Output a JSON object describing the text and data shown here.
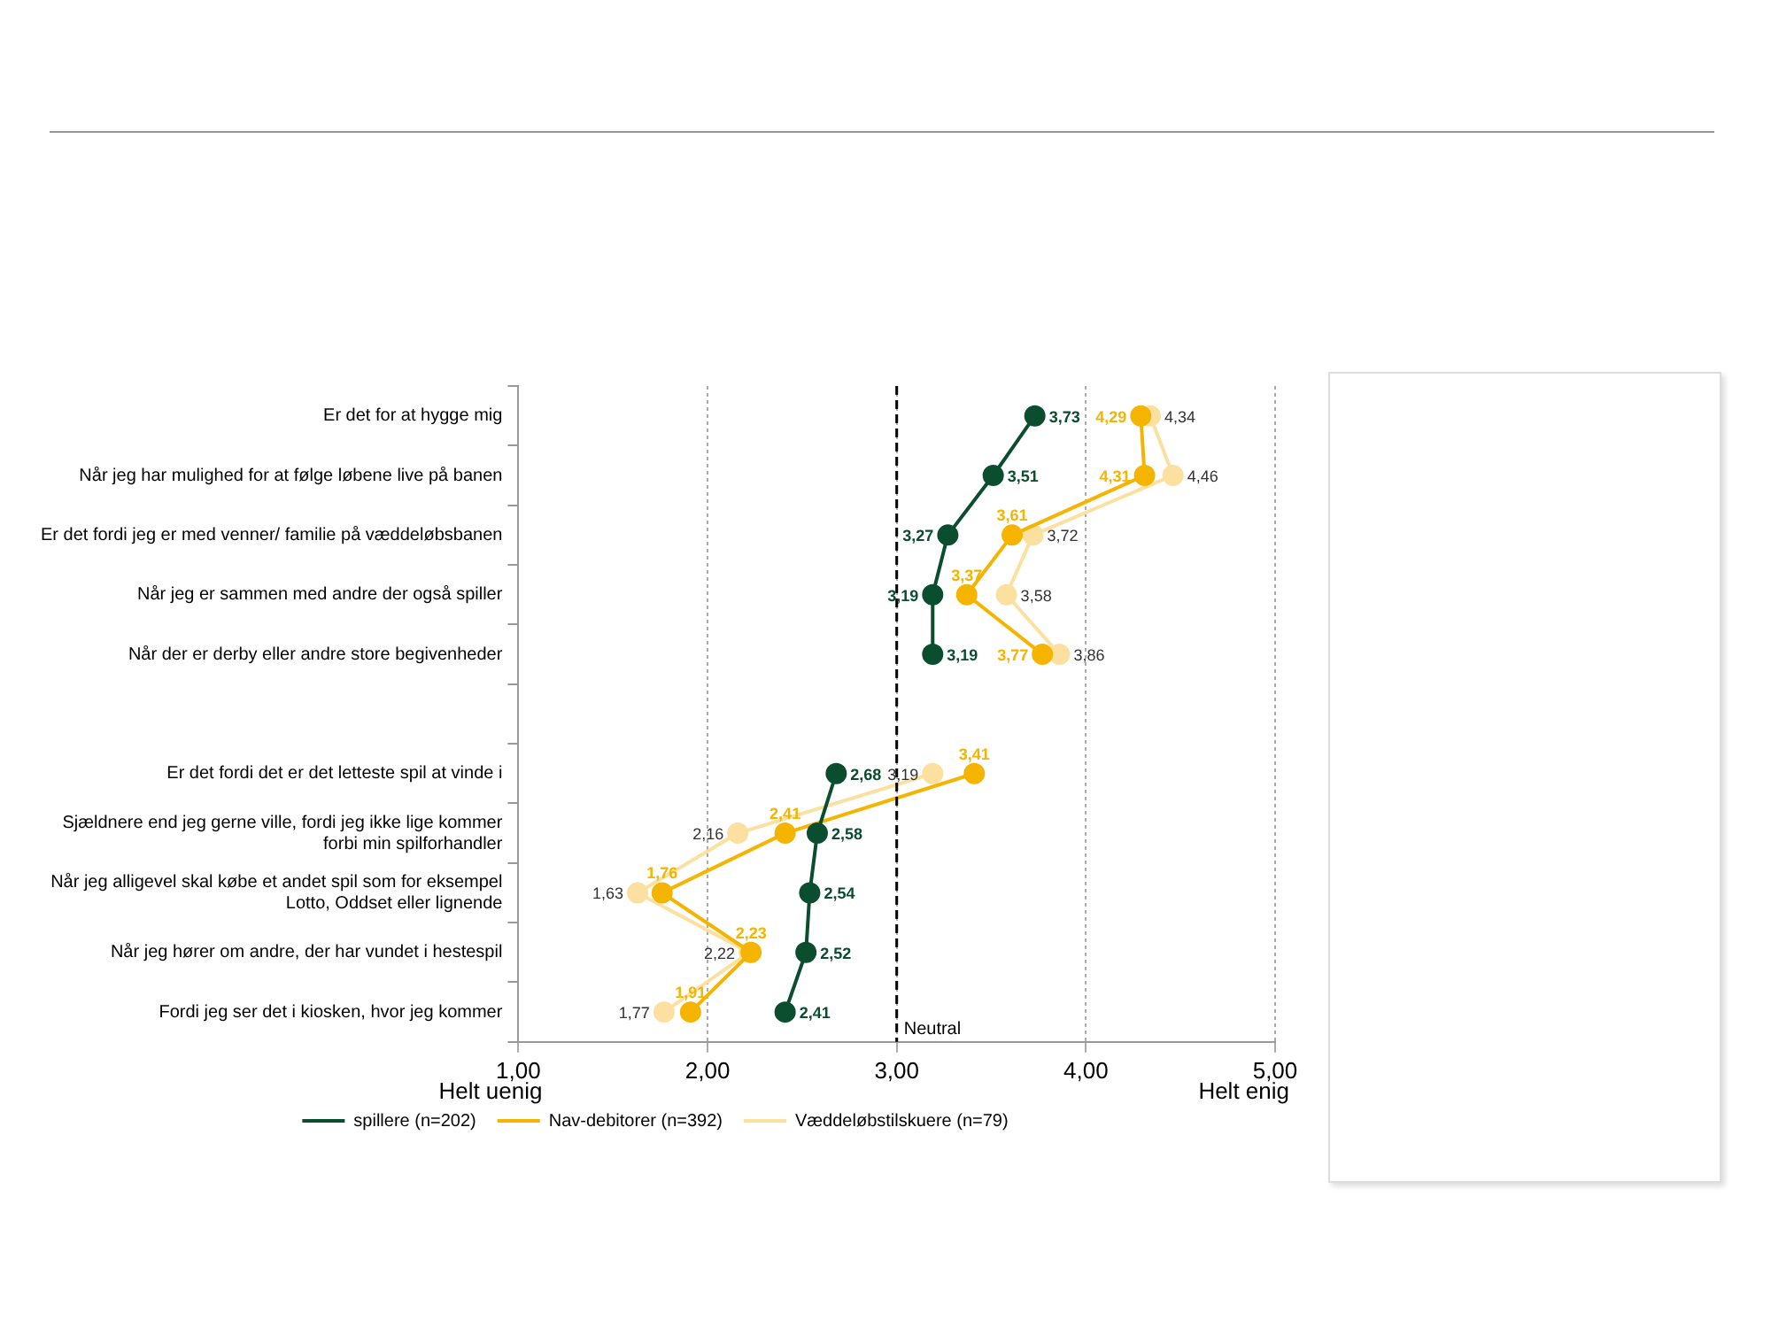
{
  "chart_data": {
    "type": "line",
    "orientation": "horizontal",
    "categories": [
      "Er det for at hygge mig",
      "Når jeg har mulighed for at følge løbene live på banen",
      "Er det fordi jeg er med venner/ familie på væddeløbsbanen",
      "Når jeg er sammen med andre der også spiller",
      "Når der er derby eller andre store begivenheder",
      null,
      "Er det fordi det er det letteste spil at vinde i",
      "Sjældnere end jeg gerne ville, fordi jeg ikke lige kommer forbi min spilforhandler",
      "Når jeg alligevel skal købe et andet spil som for eksempel Lotto, Oddset eller lignende",
      "Når jeg hører om andre, der har vundet i hestespil",
      "Fordi jeg ser det i kiosken, hvor jeg kommer"
    ],
    "series": [
      {
        "name": "spillere (n=202)",
        "color": "#0b4d2f",
        "values": [
          3.73,
          3.51,
          3.27,
          3.19,
          3.19,
          null,
          2.68,
          2.58,
          2.54,
          2.52,
          2.41
        ],
        "value_labels": [
          "3,73",
          "3,51",
          "3,27",
          "3,19",
          "3,19",
          null,
          "2,68",
          "2,58",
          "2,54",
          "2,52",
          "2,41"
        ]
      },
      {
        "name": "Nav-debitorer (n=392)",
        "color": "#f5b400",
        "values": [
          4.29,
          4.31,
          3.61,
          3.37,
          3.77,
          null,
          3.41,
          2.41,
          1.76,
          2.23,
          1.91
        ],
        "value_labels": [
          "4,29",
          "4,31",
          "3,61",
          "3,37",
          "3,77",
          null,
          "3,41",
          "2,41",
          "1,76",
          "2,23",
          "1,91"
        ]
      },
      {
        "name": "Væddeløbstilskuere (n=79)",
        "color": "#fbe0a0",
        "values": [
          4.34,
          4.46,
          3.72,
          3.58,
          3.86,
          null,
          3.19,
          2.16,
          1.63,
          2.22,
          1.77
        ],
        "value_labels": [
          "4,34",
          "4,46",
          "3,72",
          "3,58",
          "3,86",
          null,
          "3,19",
          "2,16",
          "1,63",
          "2,22",
          "1,77"
        ]
      }
    ],
    "xlim": [
      1,
      5
    ],
    "xticks": [
      {
        "value": 1,
        "label": "1,00"
      },
      {
        "value": 2,
        "label": "2,00"
      },
      {
        "value": 3,
        "label": "3,00"
      },
      {
        "value": 4,
        "label": "4,00"
      },
      {
        "value": 5,
        "label": "5,00"
      }
    ],
    "ref_lines": [
      {
        "axis": "x",
        "value": 3,
        "label": "Neutral",
        "color": "#000000",
        "line_style": "dashed"
      }
    ],
    "annotations": [
      "Helt uenig",
      "Helt enig"
    ],
    "grid": "x",
    "legend": "bottom",
    "marker": "circle",
    "line_style": "solid"
  }
}
